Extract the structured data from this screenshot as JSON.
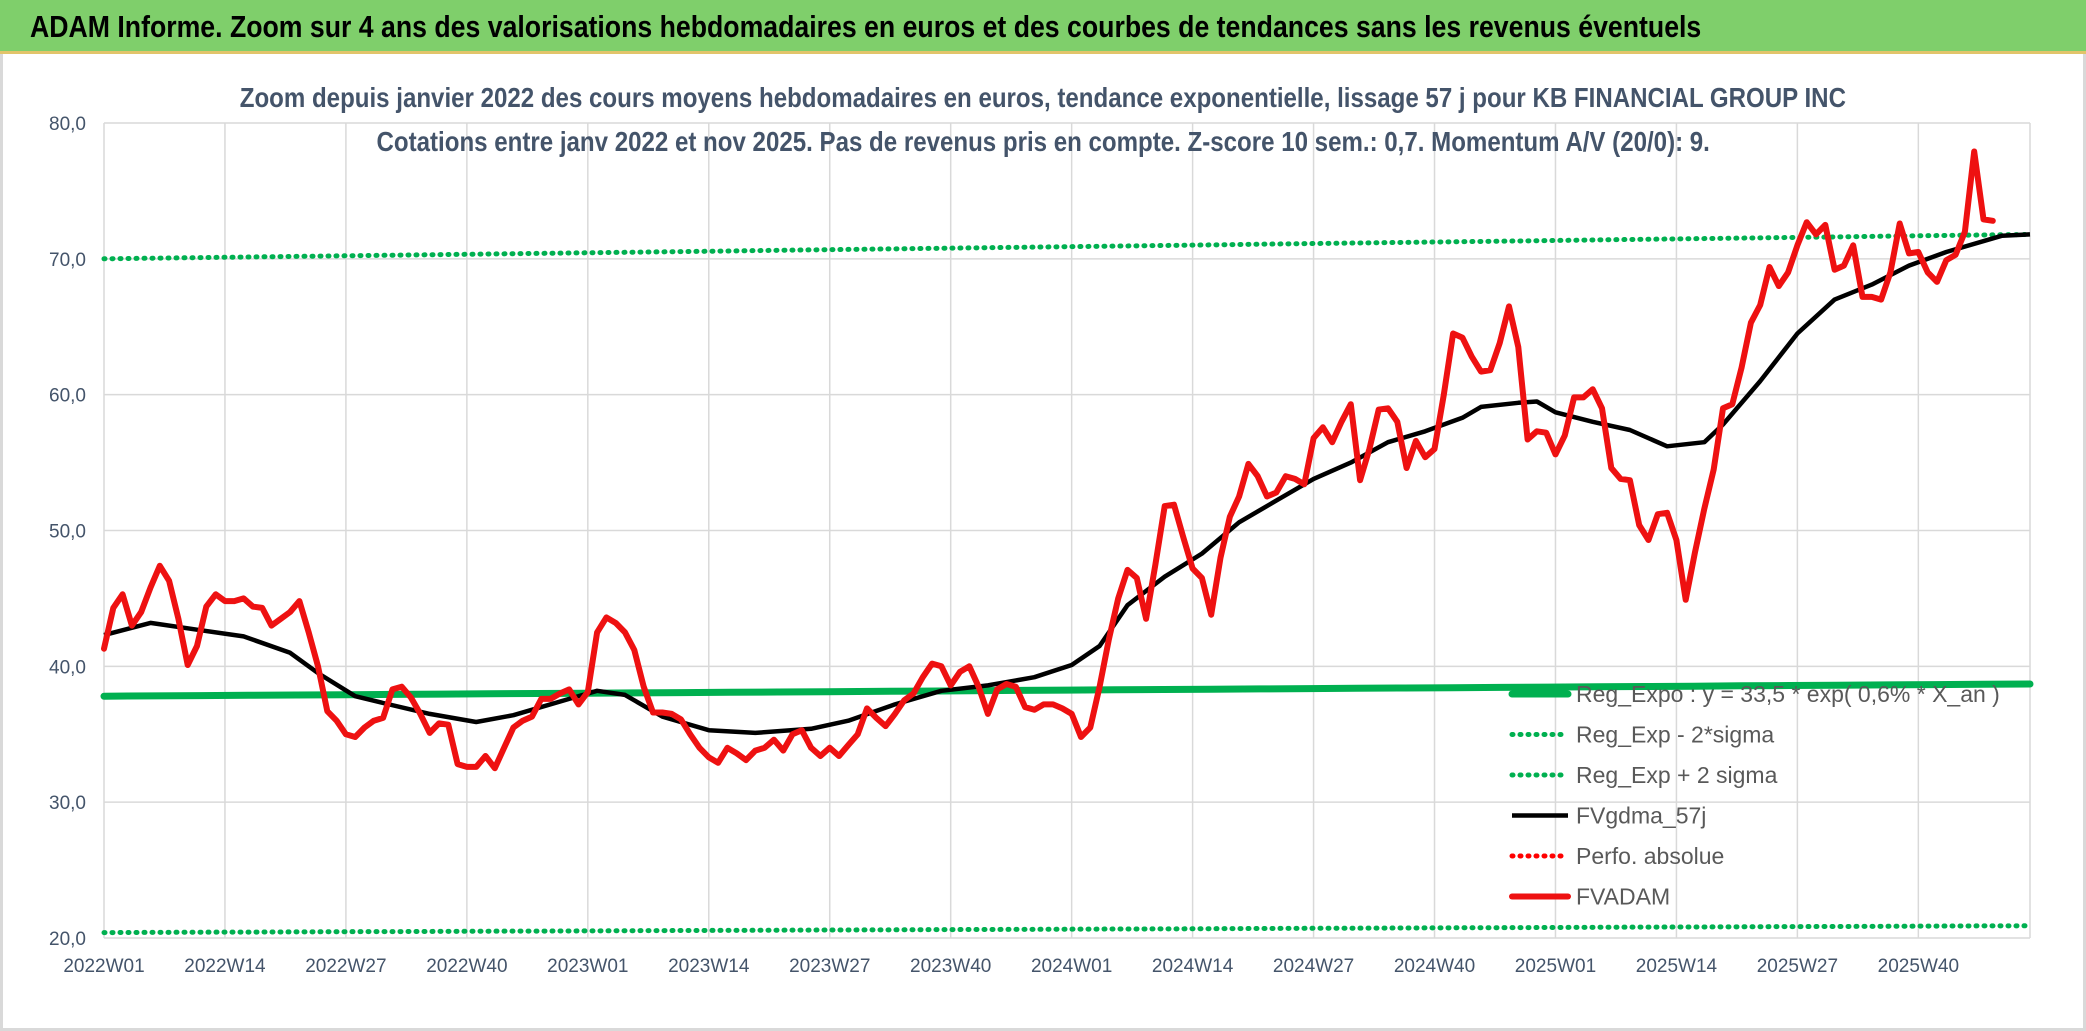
{
  "banner": {
    "title": "ADAM Informe. Zoom sur 4 ans des valorisations hebdomadaires en euros et des courbes de tendances sans les revenus éventuels"
  },
  "colors": {
    "banner_bg": "#7fcf6b",
    "trend_green": "#00b050",
    "fvadam_red": "#ee1111",
    "fvgdma_black": "#000000",
    "perfo_red_dotted": "#ff0000",
    "grid": "#d9d9d9"
  },
  "chart_data": {
    "type": "line",
    "title_line1": "Zoom depuis janvier 2022 des cours moyens hebdomadaires en euros, tendance exponentielle, lissage 57 j pour KB FINANCIAL GROUP INC",
    "title_line2": "Cotations entre janv 2022 et nov 2025. Pas de revenus pris en compte. Z-score 10 sem.: 0,7. Momentum A/V (20/0): 9.",
    "ylim": [
      20,
      80
    ],
    "yticks": [
      "20,0",
      "30,0",
      "40,0",
      "50,0",
      "60,0",
      "70,0",
      "80,0"
    ],
    "x_tick_labels": [
      "2022W01",
      "2022W14",
      "2022W27",
      "2022W40",
      "2023W01",
      "2023W14",
      "2023W27",
      "2023W40",
      "2024W01",
      "2024W14",
      "2024W27",
      "2024W40",
      "2025W01",
      "2025W14",
      "2025W27",
      "2025W40"
    ],
    "weeks_per_tick": 13,
    "n_weeks": 208,
    "grid": true,
    "legend_position": "bottom-right",
    "series": [
      {
        "name": "Reg_Expo : y = 33,5 * exp( 0,6% * X_an )",
        "style": "solid-thick",
        "color": "#00b050",
        "start": 37.8,
        "end": 38.7
      },
      {
        "name": "Reg_Exp - 2*sigma",
        "style": "dotted",
        "color": "#00b050",
        "start": 20.4,
        "end": 20.9
      },
      {
        "name": "Reg_Exp + 2 sigma",
        "style": "dotted",
        "color": "#00b050",
        "start": 70.0,
        "end": 71.8
      },
      {
        "name": "FVgdma_57j",
        "style": "solid",
        "color": "#000000",
        "points": [
          [
            0,
            42.3
          ],
          [
            5,
            43.2
          ],
          [
            10,
            42.7
          ],
          [
            15,
            42.2
          ],
          [
            20,
            41
          ],
          [
            23,
            39.5
          ],
          [
            27,
            37.8
          ],
          [
            30,
            37.3
          ],
          [
            35,
            36.5
          ],
          [
            40,
            35.9
          ],
          [
            44,
            36.4
          ],
          [
            50,
            37.6
          ],
          [
            53,
            38.2
          ],
          [
            56,
            37.9
          ],
          [
            60,
            36.3
          ],
          [
            65,
            35.3
          ],
          [
            70,
            35.1
          ],
          [
            76,
            35.4
          ],
          [
            80,
            36
          ],
          [
            85,
            37.2
          ],
          [
            90,
            38.2
          ],
          [
            95,
            38.6
          ],
          [
            100,
            39.2
          ],
          [
            104,
            40.1
          ],
          [
            107,
            41.5
          ],
          [
            110,
            44.5
          ],
          [
            114,
            46.6
          ],
          [
            118,
            48.3
          ],
          [
            122,
            50.6
          ],
          [
            126,
            52.2
          ],
          [
            130,
            53.8
          ],
          [
            134,
            55
          ],
          [
            138,
            56.5
          ],
          [
            142,
            57.3
          ],
          [
            146,
            58.3
          ],
          [
            148,
            59.1
          ],
          [
            152,
            59.4
          ],
          [
            154,
            59.5
          ],
          [
            156,
            58.7
          ],
          [
            160,
            58
          ],
          [
            164,
            57.4
          ],
          [
            168,
            56.2
          ],
          [
            172,
            56.5
          ],
          [
            174,
            57.8
          ],
          [
            178,
            61
          ],
          [
            182,
            64.5
          ],
          [
            186,
            67
          ],
          [
            190,
            68.1
          ],
          [
            194,
            69.5
          ],
          [
            198,
            70.5
          ],
          [
            204,
            71.7
          ],
          [
            207,
            71.8
          ]
        ]
      },
      {
        "name": "Perfo. absolue",
        "style": "dotted",
        "color": "#ff0000",
        "points": []
      },
      {
        "name": "FVADAM",
        "style": "solid-thick",
        "color": "#ee1111",
        "points": [
          [
            0,
            41.3
          ],
          [
            1,
            44.3
          ],
          [
            2,
            45.3
          ],
          [
            3,
            43
          ],
          [
            4,
            44
          ],
          [
            5,
            45.8
          ],
          [
            6,
            47.4
          ],
          [
            7,
            46.3
          ],
          [
            8,
            43.5
          ],
          [
            9,
            40.1
          ],
          [
            10,
            41.5
          ],
          [
            11,
            44.4
          ],
          [
            12,
            45.3
          ],
          [
            13,
            44.8
          ],
          [
            14,
            44.8
          ],
          [
            15,
            45
          ],
          [
            16,
            44.4
          ],
          [
            17,
            44.3
          ],
          [
            18,
            43
          ],
          [
            19,
            43.5
          ],
          [
            20,
            44
          ],
          [
            21,
            44.8
          ],
          [
            22,
            42.5
          ],
          [
            23,
            40
          ],
          [
            24,
            36.7
          ],
          [
            25,
            36
          ],
          [
            26,
            35
          ],
          [
            27,
            34.8
          ],
          [
            28,
            35.5
          ],
          [
            29,
            36
          ],
          [
            30,
            36.2
          ],
          [
            31,
            38.3
          ],
          [
            32,
            38.5
          ],
          [
            33,
            37.7
          ],
          [
            34,
            36.5
          ],
          [
            35,
            35.1
          ],
          [
            36,
            35.8
          ],
          [
            37,
            35.7
          ],
          [
            38,
            32.8
          ],
          [
            39,
            32.6
          ],
          [
            40,
            32.6
          ],
          [
            41,
            33.4
          ],
          [
            42,
            32.5
          ],
          [
            43,
            34
          ],
          [
            44,
            35.5
          ],
          [
            45,
            36
          ],
          [
            46,
            36.3
          ],
          [
            47,
            37.6
          ],
          [
            48,
            37.6
          ],
          [
            49,
            38
          ],
          [
            50,
            38.3
          ],
          [
            51,
            37.2
          ],
          [
            52,
            38.1
          ],
          [
            53,
            42.5
          ],
          [
            54,
            43.6
          ],
          [
            55,
            43.2
          ],
          [
            56,
            42.5
          ],
          [
            57,
            41.2
          ],
          [
            58,
            38.5
          ],
          [
            59,
            36.6
          ],
          [
            60,
            36.6
          ],
          [
            61,
            36.5
          ],
          [
            62,
            36.1
          ],
          [
            63,
            35
          ],
          [
            64,
            34
          ],
          [
            65,
            33.3
          ],
          [
            66,
            32.9
          ],
          [
            67,
            34
          ],
          [
            68,
            33.6
          ],
          [
            69,
            33.1
          ],
          [
            70,
            33.8
          ],
          [
            71,
            34
          ],
          [
            72,
            34.6
          ],
          [
            73,
            33.8
          ],
          [
            74,
            35
          ],
          [
            75,
            35.3
          ],
          [
            76,
            34
          ],
          [
            77,
            33.4
          ],
          [
            78,
            34
          ],
          [
            79,
            33.4
          ],
          [
            80,
            34.2
          ],
          [
            81,
            35
          ],
          [
            82,
            36.9
          ],
          [
            83,
            36.2
          ],
          [
            84,
            35.6
          ],
          [
            85,
            36.5
          ],
          [
            86,
            37.5
          ],
          [
            87,
            38
          ],
          [
            88,
            39.2
          ],
          [
            89,
            40.2
          ],
          [
            90,
            40
          ],
          [
            91,
            38.6
          ],
          [
            92,
            39.6
          ],
          [
            93,
            40
          ],
          [
            94,
            38.5
          ],
          [
            95,
            36.5
          ],
          [
            96,
            38.3
          ],
          [
            97,
            38.7
          ],
          [
            98,
            38.5
          ],
          [
            99,
            37
          ],
          [
            100,
            36.8
          ],
          [
            101,
            37.2
          ],
          [
            102,
            37.2
          ],
          [
            103,
            36.9
          ],
          [
            104,
            36.5
          ],
          [
            105,
            34.8
          ],
          [
            106,
            35.5
          ],
          [
            107,
            38.5
          ],
          [
            108,
            42
          ],
          [
            109,
            45
          ],
          [
            110,
            47.1
          ],
          [
            111,
            46.5
          ],
          [
            112,
            43.5
          ],
          [
            113,
            47.5
          ],
          [
            114,
            51.8
          ],
          [
            115,
            51.9
          ],
          [
            116,
            49.5
          ],
          [
            117,
            47.2
          ],
          [
            118,
            46.5
          ],
          [
            119,
            43.8
          ],
          [
            120,
            48
          ],
          [
            121,
            51
          ],
          [
            122,
            52.5
          ],
          [
            123,
            54.9
          ],
          [
            124,
            54
          ],
          [
            125,
            52.5
          ],
          [
            126,
            52.8
          ],
          [
            127,
            54
          ],
          [
            128,
            53.8
          ],
          [
            129,
            53.4
          ],
          [
            130,
            56.8
          ],
          [
            131,
            57.6
          ],
          [
            132,
            56.5
          ],
          [
            133,
            58
          ],
          [
            134,
            59.3
          ],
          [
            135,
            53.7
          ],
          [
            136,
            56
          ],
          [
            137,
            58.9
          ],
          [
            138,
            59
          ],
          [
            139,
            58
          ],
          [
            140,
            54.6
          ],
          [
            141,
            56.6
          ],
          [
            142,
            55.4
          ],
          [
            143,
            56
          ],
          [
            144,
            60
          ],
          [
            145,
            64.5
          ],
          [
            146,
            64.2
          ],
          [
            147,
            62.8
          ],
          [
            148,
            61.7
          ],
          [
            149,
            61.8
          ],
          [
            150,
            63.8
          ],
          [
            151,
            66.5
          ],
          [
            152,
            63.5
          ],
          [
            153,
            56.7
          ],
          [
            154,
            57.3
          ],
          [
            155,
            57.2
          ],
          [
            156,
            55.6
          ],
          [
            157,
            57
          ],
          [
            158,
            59.8
          ],
          [
            159,
            59.8
          ],
          [
            160,
            60.4
          ],
          [
            161,
            59
          ],
          [
            162,
            54.6
          ],
          [
            163,
            53.8
          ],
          [
            164,
            53.7
          ],
          [
            165,
            50.4
          ],
          [
            166,
            49.3
          ],
          [
            167,
            51.2
          ],
          [
            168,
            51.3
          ],
          [
            169,
            49.3
          ],
          [
            170,
            44.9
          ],
          [
            171,
            48.4
          ],
          [
            172,
            51.6
          ],
          [
            173,
            54.5
          ],
          [
            174,
            59
          ],
          [
            175,
            59.3
          ],
          [
            176,
            62
          ],
          [
            177,
            65.3
          ],
          [
            178,
            66.6
          ],
          [
            179,
            69.4
          ],
          [
            180,
            68
          ],
          [
            181,
            69
          ],
          [
            182,
            71
          ],
          [
            183,
            72.7
          ],
          [
            184,
            71.8
          ],
          [
            185,
            72.5
          ],
          [
            186,
            69.2
          ],
          [
            187,
            69.5
          ],
          [
            188,
            71
          ],
          [
            189,
            67.2
          ],
          [
            190,
            67.2
          ],
          [
            191,
            67
          ],
          [
            192,
            69
          ],
          [
            193,
            72.6
          ],
          [
            194,
            70.4
          ],
          [
            195,
            70.5
          ],
          [
            196,
            69
          ],
          [
            197,
            68.3
          ],
          [
            198,
            69.9
          ],
          [
            199,
            70.3
          ],
          [
            200,
            72
          ],
          [
            201,
            77.9
          ],
          [
            202,
            72.9
          ],
          [
            203,
            72.8
          ]
        ]
      }
    ]
  }
}
